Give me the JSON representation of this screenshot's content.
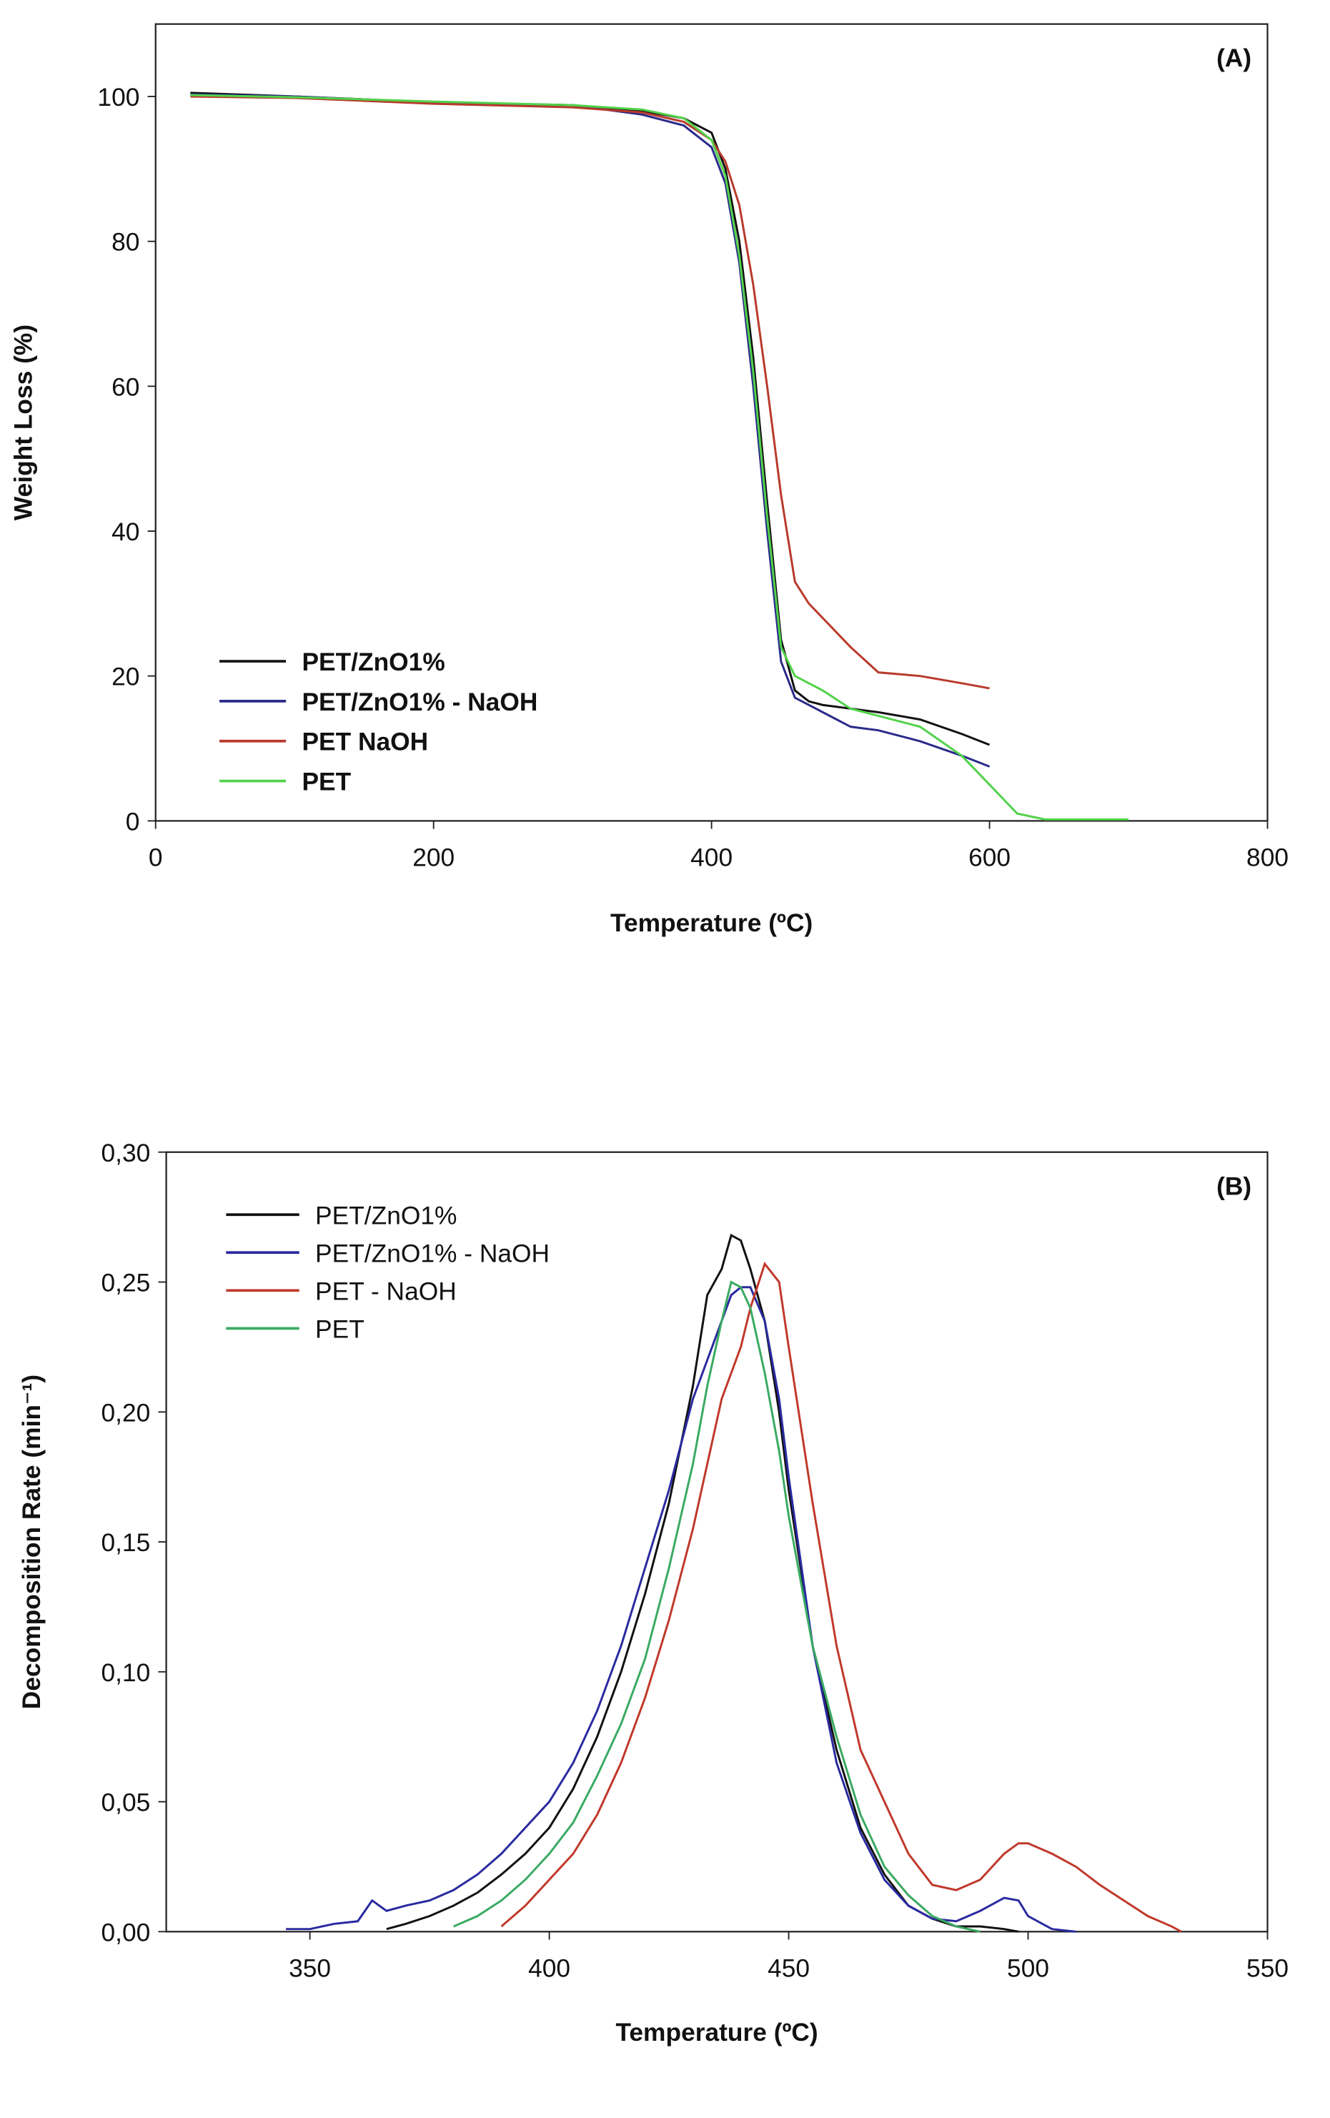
{
  "chart_data": [
    {
      "type": "line",
      "annotation": "(A)",
      "x_label": "Temperature (ºC)",
      "y_label": "Weight Loss (%)",
      "legend_bold": true,
      "x": [
        25,
        100,
        200,
        300,
        350,
        380,
        400,
        410,
        420,
        430,
        440,
        450,
        460,
        470,
        480,
        500,
        520,
        550,
        580,
        600,
        620,
        640,
        700
      ],
      "series": [
        {
          "name": "PET/ZnO1%",
          "color": "#111111",
          "values": [
            100.5,
            100,
            99.2,
            98.8,
            98,
            97,
            95,
            90,
            80,
            64,
            44,
            25,
            18,
            16.5,
            16,
            15.5,
            15,
            14,
            12,
            10.5,
            null,
            null,
            null
          ]
        },
        {
          "name": "PET/ZnO1% - NaOH",
          "color": "#2a2a8a",
          "values": [
            100.3,
            100,
            99.2,
            98.8,
            97.5,
            96,
            93,
            88,
            77,
            60,
            40,
            22,
            17,
            16,
            15,
            13,
            12.5,
            11,
            9,
            7.5,
            null,
            null,
            null
          ]
        },
        {
          "name": "PET NaOH",
          "color": "#b83a2c",
          "values": [
            100,
            99.8,
            99,
            98.5,
            97.8,
            96.5,
            94,
            91,
            85,
            74,
            60,
            45,
            33,
            30,
            28,
            24,
            20.5,
            20,
            19,
            18.3,
            null,
            null,
            null
          ]
        },
        {
          "name": "PET",
          "color": "#52d24a",
          "values": [
            100.2,
            99.9,
            99.3,
            98.8,
            98.2,
            97,
            94,
            89,
            78,
            62,
            42,
            24,
            20,
            19,
            18,
            15.5,
            14.5,
            13,
            9,
            5,
            1,
            0.2,
            0.2
          ]
        }
      ],
      "xlim": [
        0,
        800
      ],
      "ylim": [
        0,
        110
      ],
      "xticks": [
        0,
        200,
        400,
        600,
        800
      ],
      "yticks": [
        0,
        20,
        40,
        60,
        80,
        100
      ]
    },
    {
      "type": "line",
      "annotation": "(B)",
      "x_label": "Temperature (ºC)",
      "y_label": "Decomposition Rate (min⁻¹)",
      "legend_bold": false,
      "x": [
        345,
        350,
        355,
        360,
        363,
        366,
        370,
        375,
        380,
        385,
        390,
        395,
        400,
        405,
        410,
        415,
        420,
        425,
        430,
        433,
        436,
        438,
        440,
        442,
        445,
        448,
        450,
        455,
        460,
        465,
        470,
        475,
        480,
        485,
        490,
        495,
        498,
        500,
        505,
        510,
        515,
        520,
        525,
        530,
        532
      ],
      "series": [
        {
          "name": "PET/ZnO1%",
          "color": "#111111",
          "values": [
            null,
            null,
            null,
            null,
            null,
            0.001,
            0.003,
            0.006,
            0.01,
            0.015,
            0.022,
            0.03,
            0.04,
            0.055,
            0.075,
            0.1,
            0.13,
            0.165,
            0.21,
            0.245,
            0.255,
            0.268,
            0.266,
            0.255,
            0.235,
            0.2,
            0.17,
            0.11,
            0.07,
            0.04,
            0.022,
            0.01,
            0.005,
            0.002,
            0.002,
            0.001,
            0,
            null,
            null,
            null,
            null,
            null,
            null,
            null,
            null
          ]
        },
        {
          "name": "PET/ZnO1% - NaOH",
          "color": "#2a2aa0",
          "values": [
            0.001,
            0.001,
            0.003,
            0.004,
            0.012,
            0.008,
            0.01,
            0.012,
            0.016,
            0.022,
            0.03,
            0.04,
            0.05,
            0.065,
            0.085,
            0.11,
            0.14,
            0.17,
            0.205,
            0.22,
            0.235,
            0.245,
            0.248,
            0.248,
            0.235,
            0.205,
            0.175,
            0.11,
            0.065,
            0.038,
            0.02,
            0.01,
            0.005,
            0.004,
            0.008,
            0.013,
            0.012,
            0.006,
            0.001,
            0,
            null,
            null,
            null,
            null,
            null
          ]
        },
        {
          "name": "PET - NaOH",
          "color": "#c0392b",
          "values": [
            null,
            null,
            null,
            null,
            null,
            null,
            null,
            null,
            null,
            null,
            0.002,
            0.01,
            0.02,
            0.03,
            0.045,
            0.065,
            0.09,
            0.12,
            0.155,
            0.18,
            0.205,
            0.215,
            0.225,
            0.24,
            0.257,
            0.25,
            0.225,
            0.165,
            0.11,
            0.07,
            0.05,
            0.03,
            0.018,
            0.016,
            0.02,
            0.03,
            0.034,
            0.034,
            0.03,
            0.025,
            0.018,
            0.012,
            0.006,
            0.002,
            0
          ]
        },
        {
          "name": "PET",
          "color": "#3aaa62",
          "values": [
            null,
            null,
            null,
            null,
            null,
            null,
            null,
            null,
            0.002,
            0.006,
            0.012,
            0.02,
            0.03,
            0.042,
            0.06,
            0.08,
            0.105,
            0.14,
            0.18,
            0.21,
            0.235,
            0.25,
            0.248,
            0.24,
            0.215,
            0.185,
            0.16,
            0.11,
            0.075,
            0.045,
            0.025,
            0.014,
            0.006,
            0.002,
            0,
            null,
            null,
            null,
            null,
            null,
            null,
            null,
            null,
            null,
            null
          ]
        }
      ],
      "xlim": [
        320,
        550
      ],
      "ylim": [
        0,
        0.3
      ],
      "xticks": [
        350,
        400,
        450,
        500,
        550
      ],
      "yticks": [
        {
          "value": 0,
          "label": "0,00"
        },
        {
          "value": 0.05,
          "label": "0,05"
        },
        {
          "value": 0.1,
          "label": "0,10"
        },
        {
          "value": 0.15,
          "label": "0,15"
        },
        {
          "value": 0.2,
          "label": "0,20"
        },
        {
          "value": 0.25,
          "label": "0,25"
        },
        {
          "value": 0.3,
          "label": "0,30"
        }
      ]
    }
  ]
}
